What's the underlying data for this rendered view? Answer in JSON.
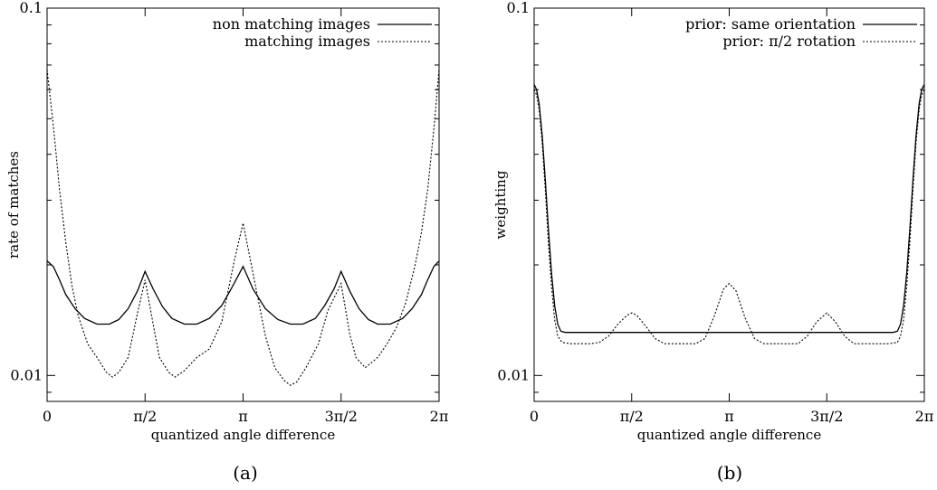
{
  "chart_data": [
    {
      "type": "line",
      "caption": "(a)",
      "title": "",
      "xlabel": "quantized angle difference",
      "ylabel": "rate of matches",
      "yscale": "log",
      "xlim": [
        0,
        6.2832
      ],
      "ylim": [
        0.0085,
        0.1
      ],
      "legend_position": "top-right",
      "x_ticks": [
        {
          "value": 0,
          "label": "0"
        },
        {
          "value": 1.5708,
          "label": "π/2"
        },
        {
          "value": 3.1416,
          "label": "π"
        },
        {
          "value": 4.7124,
          "label": "3π/2"
        },
        {
          "value": 6.2832,
          "label": "2π"
        }
      ],
      "y_ticks_labeled": [
        {
          "value": 0.01,
          "label": "0.01"
        },
        {
          "value": 0.1,
          "label": "0.1"
        }
      ],
      "y_ticks_minor": [
        0.009,
        0.02,
        0.03,
        0.04,
        0.05,
        0.06,
        0.07,
        0.08,
        0.09
      ],
      "series": [
        {
          "name": "non matching images",
          "style": "solid",
          "points": [
            [
              0,
              0.0205
            ],
            [
              0.1,
              0.0198
            ],
            [
              0.2,
              0.0182
            ],
            [
              0.3,
              0.0166
            ],
            [
              0.45,
              0.0152
            ],
            [
              0.6,
              0.0143
            ],
            [
              0.8,
              0.0138
            ],
            [
              1.0,
              0.0138
            ],
            [
              1.15,
              0.0142
            ],
            [
              1.3,
              0.0152
            ],
            [
              1.45,
              0.017
            ],
            [
              1.5708,
              0.0192
            ],
            [
              1.7,
              0.0172
            ],
            [
              1.85,
              0.0154
            ],
            [
              2.0,
              0.0143
            ],
            [
              2.2,
              0.0138
            ],
            [
              2.4,
              0.0138
            ],
            [
              2.6,
              0.0143
            ],
            [
              2.8,
              0.0155
            ],
            [
              2.95,
              0.0172
            ],
            [
              3.1416,
              0.0198
            ],
            [
              3.3,
              0.0172
            ],
            [
              3.5,
              0.0152
            ],
            [
              3.7,
              0.0142
            ],
            [
              3.9,
              0.0138
            ],
            [
              4.1,
              0.0138
            ],
            [
              4.3,
              0.0143
            ],
            [
              4.45,
              0.0155
            ],
            [
              4.6,
              0.0172
            ],
            [
              4.7124,
              0.0192
            ],
            [
              4.85,
              0.017
            ],
            [
              5.0,
              0.0152
            ],
            [
              5.15,
              0.0142
            ],
            [
              5.3,
              0.0138
            ],
            [
              5.5,
              0.0138
            ],
            [
              5.7,
              0.0143
            ],
            [
              5.85,
              0.0152
            ],
            [
              6.0,
              0.0166
            ],
            [
              6.1,
              0.0182
            ],
            [
              6.2,
              0.0198
            ],
            [
              6.2832,
              0.0205
            ]
          ]
        },
        {
          "name": "matching images",
          "style": "dotted",
          "points": [
            [
              0,
              0.068
            ],
            [
              0.1,
              0.048
            ],
            [
              0.2,
              0.032
            ],
            [
              0.3,
              0.023
            ],
            [
              0.4,
              0.0175
            ],
            [
              0.5,
              0.0145
            ],
            [
              0.65,
              0.0122
            ],
            [
              0.8,
              0.0112
            ],
            [
              0.95,
              0.0102
            ],
            [
              1.05,
              0.0099
            ],
            [
              1.15,
              0.0102
            ],
            [
              1.3,
              0.0112
            ],
            [
              1.45,
              0.0148
            ],
            [
              1.5708,
              0.0182
            ],
            [
              1.7,
              0.0138
            ],
            [
              1.8,
              0.0112
            ],
            [
              1.95,
              0.0102
            ],
            [
              2.05,
              0.0099
            ],
            [
              2.2,
              0.0103
            ],
            [
              2.4,
              0.0112
            ],
            [
              2.6,
              0.0118
            ],
            [
              2.8,
              0.014
            ],
            [
              3.0,
              0.0205
            ],
            [
              3.1416,
              0.026
            ],
            [
              3.3,
              0.019
            ],
            [
              3.5,
              0.0128
            ],
            [
              3.65,
              0.0105
            ],
            [
              3.8,
              0.0097
            ],
            [
              3.9,
              0.0094
            ],
            [
              4.0,
              0.0096
            ],
            [
              4.15,
              0.0105
            ],
            [
              4.35,
              0.0122
            ],
            [
              4.5,
              0.015
            ],
            [
              4.7124,
              0.0178
            ],
            [
              4.85,
              0.013
            ],
            [
              4.95,
              0.0112
            ],
            [
              5.1,
              0.0105
            ],
            [
              5.3,
              0.0112
            ],
            [
              5.45,
              0.0122
            ],
            [
              5.6,
              0.0135
            ],
            [
              5.75,
              0.0158
            ],
            [
              5.9,
              0.02
            ],
            [
              6.0,
              0.0245
            ],
            [
              6.1,
              0.032
            ],
            [
              6.2,
              0.047
            ],
            [
              6.2832,
              0.068
            ]
          ]
        }
      ]
    },
    {
      "type": "line",
      "caption": "(b)",
      "title": "",
      "xlabel": "quantized angle difference",
      "ylabel": "weighting",
      "yscale": "log",
      "xlim": [
        0,
        6.2832
      ],
      "ylim": [
        0.0085,
        0.1
      ],
      "legend_position": "top-right",
      "x_ticks": [
        {
          "value": 0,
          "label": "0"
        },
        {
          "value": 1.5708,
          "label": "π/2"
        },
        {
          "value": 3.1416,
          "label": "π"
        },
        {
          "value": 4.7124,
          "label": "3π/2"
        },
        {
          "value": 6.2832,
          "label": "2π"
        }
      ],
      "y_ticks_labeled": [
        {
          "value": 0.01,
          "label": "0.01"
        },
        {
          "value": 0.1,
          "label": "0.1"
        }
      ],
      "y_ticks_minor": [
        0.009,
        0.02,
        0.03,
        0.04,
        0.05,
        0.06,
        0.07,
        0.08,
        0.09
      ],
      "series": [
        {
          "name": "prior: same orientation",
          "style": "solid",
          "points": [
            [
              0,
              0.062
            ],
            [
              0.04,
              0.06
            ],
            [
              0.08,
              0.055
            ],
            [
              0.13,
              0.045
            ],
            [
              0.18,
              0.034
            ],
            [
              0.23,
              0.025
            ],
            [
              0.28,
              0.019
            ],
            [
              0.33,
              0.0155
            ],
            [
              0.38,
              0.0138
            ],
            [
              0.43,
              0.0132
            ],
            [
              0.5,
              0.0131
            ],
            [
              1.0,
              0.0131
            ],
            [
              2.0,
              0.0131
            ],
            [
              3.0,
              0.0131
            ],
            [
              4.0,
              0.0131
            ],
            [
              5.0,
              0.0131
            ],
            [
              5.78,
              0.0131
            ],
            [
              5.85,
              0.0132
            ],
            [
              5.9,
              0.0138
            ],
            [
              5.95,
              0.0155
            ],
            [
              6.0,
              0.019
            ],
            [
              6.05,
              0.025
            ],
            [
              6.1,
              0.034
            ],
            [
              6.15,
              0.045
            ],
            [
              6.2,
              0.055
            ],
            [
              6.24,
              0.06
            ],
            [
              6.2832,
              0.062
            ]
          ]
        },
        {
          "name": "prior: π/2 rotation",
          "style": "dotted",
          "points": [
            [
              0,
              0.06
            ],
            [
              0.04,
              0.058
            ],
            [
              0.08,
              0.053
            ],
            [
              0.13,
              0.043
            ],
            [
              0.18,
              0.032
            ],
            [
              0.23,
              0.023
            ],
            [
              0.28,
              0.0175
            ],
            [
              0.33,
              0.0142
            ],
            [
              0.38,
              0.0128
            ],
            [
              0.45,
              0.0123
            ],
            [
              0.6,
              0.0122
            ],
            [
              0.9,
              0.0122
            ],
            [
              1.05,
              0.0123
            ],
            [
              1.2,
              0.0128
            ],
            [
              1.35,
              0.0138
            ],
            [
              1.5,
              0.0146
            ],
            [
              1.5708,
              0.0148
            ],
            [
              1.65,
              0.0146
            ],
            [
              1.8,
              0.0136
            ],
            [
              1.95,
              0.0126
            ],
            [
              2.1,
              0.0122
            ],
            [
              2.6,
              0.0122
            ],
            [
              2.75,
              0.0126
            ],
            [
              2.9,
              0.0145
            ],
            [
              3.05,
              0.0172
            ],
            [
              3.1416,
              0.0178
            ],
            [
              3.25,
              0.017
            ],
            [
              3.4,
              0.0143
            ],
            [
              3.55,
              0.0126
            ],
            [
              3.7,
              0.0122
            ],
            [
              4.25,
              0.0122
            ],
            [
              4.4,
              0.0128
            ],
            [
              4.55,
              0.014
            ],
            [
              4.7124,
              0.0148
            ],
            [
              4.85,
              0.014
            ],
            [
              5.0,
              0.0128
            ],
            [
              5.15,
              0.0122
            ],
            [
              5.7,
              0.0122
            ],
            [
              5.85,
              0.0123
            ],
            [
              5.9,
              0.0128
            ],
            [
              5.95,
              0.0142
            ],
            [
              6.0,
              0.0175
            ],
            [
              6.05,
              0.023
            ],
            [
              6.1,
              0.032
            ],
            [
              6.15,
              0.043
            ],
            [
              6.2,
              0.053
            ],
            [
              6.24,
              0.058
            ],
            [
              6.2832,
              0.06
            ]
          ]
        }
      ]
    }
  ]
}
